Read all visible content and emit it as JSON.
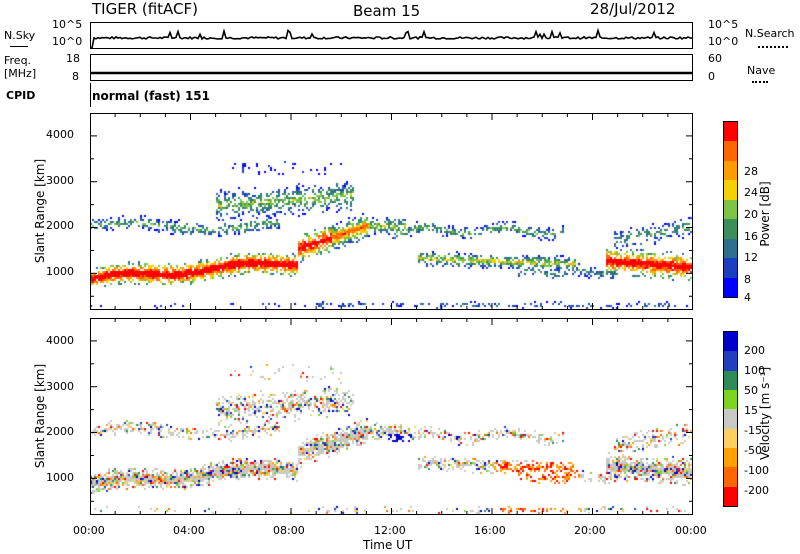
{
  "header": {
    "title": "TIGER (fitACF)",
    "beam": "Beam 15",
    "date": "28/Jul/2012"
  },
  "strip_labels": {
    "nsky": "N.Sky",
    "nsearch": "N.Search",
    "freq": "Freq.",
    "mhz": "[MHz]",
    "nave": "Nave",
    "cpid": "CPID",
    "cpid_value": "normal (fast) 151"
  },
  "strip_ticks": {
    "noise_left": [
      "10^5",
      "10^0"
    ],
    "noise_right": [
      "10^5",
      "10^0"
    ],
    "freq_left": [
      "18",
      "8"
    ],
    "nave_right": [
      "60",
      "0"
    ]
  },
  "colors": {
    "power_scale": [
      "#0000ff",
      "#1c3fc2",
      "#2e6f8e",
      "#3c8f5a",
      "#7ec246",
      "#f5d000",
      "#ff9c00",
      "#ff6600",
      "#ff0000"
    ],
    "velocity_scale": [
      "#ff0000",
      "#ff6600",
      "#ffa000",
      "#ffd060",
      "#c8c8c4",
      "#7ed321",
      "#2e8b57",
      "#1f3fbf",
      "#0000cc"
    ]
  },
  "chart_data": [
    {
      "type": "heatmap",
      "panel": "power",
      "ylabel": "Slant Range [km]",
      "ylim": [
        200,
        4500
      ],
      "y_ticks": [
        "1000",
        "2000",
        "3000",
        "4000"
      ],
      "colorbar_label": "Power [dB]",
      "colorbar_ticks": [
        "4",
        "8",
        "12",
        "16",
        "20",
        "24",
        "28"
      ],
      "colorbar_range": [
        0,
        32
      ],
      "x_ticks": [
        "00:00",
        "04:00",
        "08:00",
        "12:00",
        "16:00",
        "20:00",
        "00:00"
      ],
      "xlim_hours": [
        0,
        24
      ]
    },
    {
      "type": "heatmap",
      "panel": "velocity",
      "ylabel": "Slant Range [km]",
      "ylim": [
        200,
        4500
      ],
      "y_ticks": [
        "1000",
        "2000",
        "3000",
        "4000"
      ],
      "colorbar_label": "Velocity [m s⁻¹]",
      "colorbar_ticks": [
        "200",
        "100",
        "50",
        "15",
        "-15",
        "-50",
        "-100",
        "-200"
      ],
      "x_ticks": [
        "00:00",
        "04:00",
        "08:00",
        "12:00",
        "16:00",
        "20:00",
        "00:00"
      ],
      "xlim_hours": [
        0,
        24
      ],
      "xlabel": "Time UT"
    }
  ]
}
